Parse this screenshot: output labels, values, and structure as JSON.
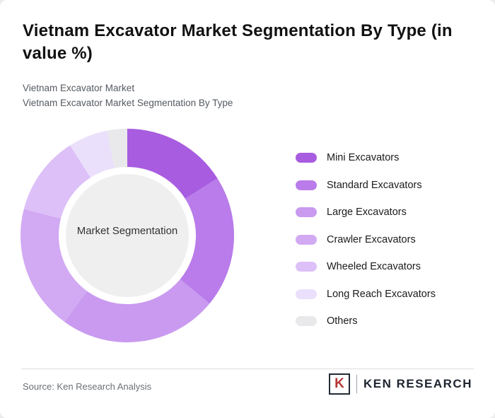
{
  "header": {
    "title": "Vietnam Excavator Market Segmentation By Type (in value %)",
    "subtitle_line1": "Vietnam Excavator Market",
    "subtitle_line2": "Vietnam Excavator Market Segmentation By Type"
  },
  "chart_data": {
    "type": "pie",
    "variant": "donut",
    "title": "Vietnam Excavator Market Segmentation By Type (in value %)",
    "center_label": "Market Segmentation",
    "legend_position": "right",
    "segments": [
      {
        "label": "Mini Excavators",
        "value": 16,
        "color": "#a85ce0"
      },
      {
        "label": "Standard Excavators",
        "value": 20,
        "color": "#b97cea"
      },
      {
        "label": "Large Excavators",
        "value": 24,
        "color": "#c99af0"
      },
      {
        "label": "Crawler Excavators",
        "value": 19,
        "color": "#d2a9f3"
      },
      {
        "label": "Wheeled Excavators",
        "value": 12,
        "color": "#ddc0f7"
      },
      {
        "label": "Long Reach Excavators",
        "value": 6,
        "color": "#ebe0fb"
      },
      {
        "label": "Others",
        "value": 3,
        "color": "#e9e9eb"
      }
    ],
    "center_fill": "#efefef"
  },
  "footer": {
    "source": "Source: Ken Research Analysis",
    "logo_letter": "K",
    "logo_text": "KEN RESEARCH"
  }
}
